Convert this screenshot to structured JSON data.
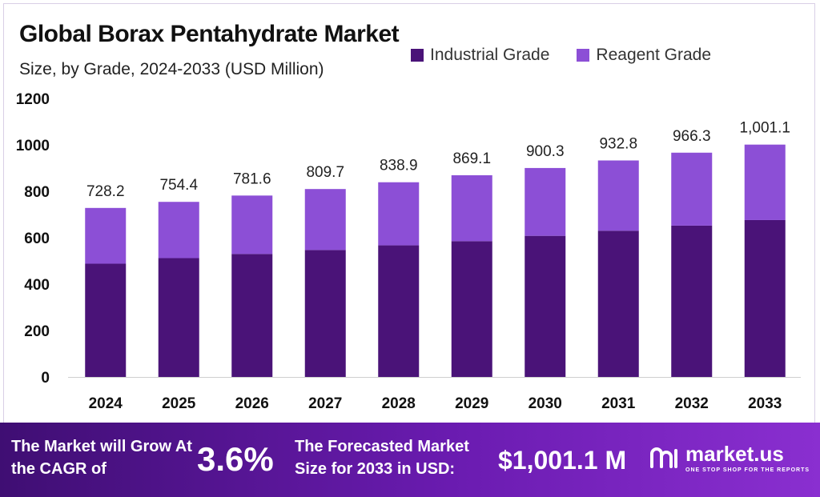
{
  "header": {
    "title": "Global Borax Pentahydrate Market",
    "subtitle": "Size, by Grade, 2024-2033 (USD Million)"
  },
  "legend": [
    {
      "label": "Industrial Grade",
      "color": "#4a1378"
    },
    {
      "label": "Reagent Grade",
      "color": "#8c4fd6"
    }
  ],
  "chart_data": {
    "type": "bar",
    "stacked": true,
    "title": "Global Borax Pentahydrate Market",
    "categories": [
      "2024",
      "2025",
      "2026",
      "2027",
      "2028",
      "2029",
      "2030",
      "2031",
      "2032",
      "2033"
    ],
    "series": [
      {
        "name": "Industrial Grade",
        "color": "#4a1378",
        "values": [
          488,
          512,
          530,
          547,
          567,
          585,
          608,
          630,
          652,
          676
        ]
      },
      {
        "name": "Reagent Grade",
        "color": "#8c4fd6",
        "values": [
          240.2,
          242.4,
          251.6,
          262.7,
          271.9,
          284.1,
          292.3,
          302.8,
          314.3,
          325.1
        ]
      }
    ],
    "totals": [
      728.2,
      754.4,
      781.6,
      809.7,
      838.9,
      869.1,
      900.3,
      932.8,
      966.3,
      1001.1
    ],
    "total_labels": [
      "728.2",
      "754.4",
      "781.6",
      "809.7",
      "838.9",
      "869.1",
      "900.3",
      "932.8",
      "966.3",
      "1,001.1"
    ],
    "y_ticks": [
      "0",
      "200",
      "400",
      "600",
      "800",
      "1000",
      "1200"
    ],
    "ylim": [
      0,
      1200
    ],
    "xlabel": "",
    "ylabel": ""
  },
  "footer": {
    "cagr_text": "The Market will Grow At the CAGR of",
    "cagr_value": "3.6%",
    "forecast_text": "The Forecasted Market Size for 2033 in USD:",
    "forecast_value": "$1,001.1 M",
    "brand_name": "market.us",
    "brand_tagline": "ONE STOP SHOP FOR THE REPORTS"
  }
}
